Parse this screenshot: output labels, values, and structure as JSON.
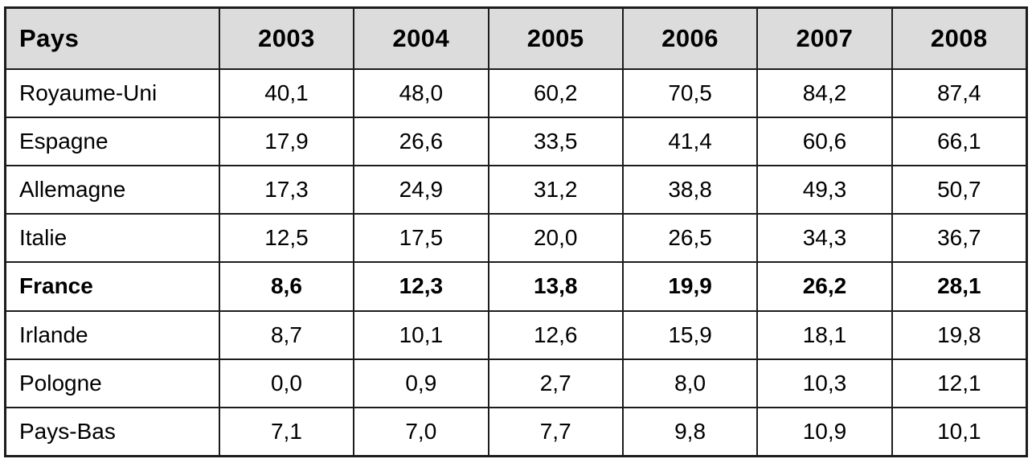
{
  "colors": {
    "header_background": "#dcdcdc",
    "border": "#1c1c1c",
    "text": "#000000",
    "row_background": "#ffffff"
  },
  "table": {
    "header": [
      "Pays",
      "2003",
      "2004",
      "2005",
      "2006",
      "2007",
      "2008"
    ],
    "rows": [
      {
        "label": "Royaume-Uni",
        "bold": false,
        "values": [
          "40,1",
          "48,0",
          "60,2",
          "70,5",
          "84,2",
          "87,4"
        ]
      },
      {
        "label": "Espagne",
        "bold": false,
        "values": [
          "17,9",
          "26,6",
          "33,5",
          "41,4",
          "60,6",
          "66,1"
        ]
      },
      {
        "label": "Allemagne",
        "bold": false,
        "values": [
          "17,3",
          "24,9",
          "31,2",
          "38,8",
          "49,3",
          "50,7"
        ]
      },
      {
        "label": "Italie",
        "bold": false,
        "values": [
          "12,5",
          "17,5",
          "20,0",
          "26,5",
          "34,3",
          "36,7"
        ]
      },
      {
        "label": "France",
        "bold": true,
        "values": [
          "8,6",
          "12,3",
          "13,8",
          "19,9",
          "26,2",
          "28,1"
        ]
      },
      {
        "label": "Irlande",
        "bold": false,
        "values": [
          "8,7",
          "10,1",
          "12,6",
          "15,9",
          "18,1",
          "19,8"
        ]
      },
      {
        "label": "Pologne",
        "bold": false,
        "values": [
          "0,0",
          "0,9",
          "2,7",
          "8,0",
          "10,3",
          "12,1"
        ]
      },
      {
        "label": "Pays-Bas",
        "bold": false,
        "values": [
          "7,1",
          "7,0",
          "7,7",
          "9,8",
          "10,9",
          "10,1"
        ]
      }
    ]
  },
  "chart_data": {
    "type": "table",
    "title": "",
    "row_header_label": "Pays",
    "categories": [
      "2003",
      "2004",
      "2005",
      "2006",
      "2007",
      "2008"
    ],
    "series": [
      {
        "name": "Royaume-Uni",
        "values": [
          40.1,
          48.0,
          60.2,
          70.5,
          84.2,
          87.4
        ]
      },
      {
        "name": "Espagne",
        "values": [
          17.9,
          26.6,
          33.5,
          41.4,
          60.6,
          66.1
        ]
      },
      {
        "name": "Allemagne",
        "values": [
          17.3,
          24.9,
          31.2,
          38.8,
          49.3,
          50.7
        ]
      },
      {
        "name": "Italie",
        "values": [
          12.5,
          17.5,
          20.0,
          26.5,
          34.3,
          36.7
        ]
      },
      {
        "name": "France",
        "values": [
          8.6,
          12.3,
          13.8,
          19.9,
          26.2,
          28.1
        ]
      },
      {
        "name": "Irlande",
        "values": [
          8.7,
          10.1,
          12.6,
          15.9,
          18.1,
          19.8
        ]
      },
      {
        "name": "Pologne",
        "values": [
          0.0,
          0.9,
          2.7,
          8.0,
          10.3,
          12.1
        ]
      },
      {
        "name": "Pays-Bas",
        "values": [
          7.1,
          7.0,
          7.7,
          9.8,
          10.9,
          10.1
        ]
      }
    ],
    "notes": "Decimal comma (French locale); France row emphasized in bold"
  }
}
